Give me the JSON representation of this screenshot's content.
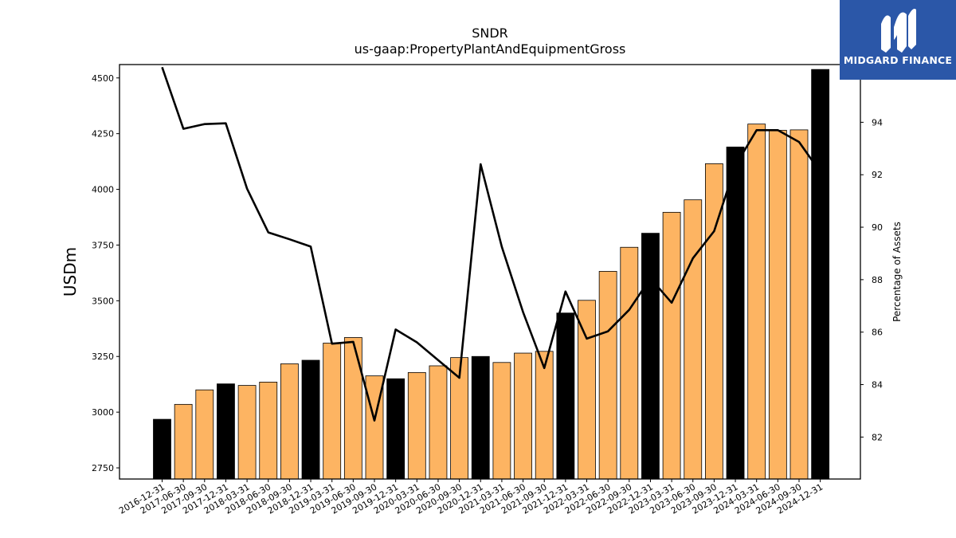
{
  "chart_data": {
    "type": "bar",
    "title": "SNDR",
    "subtitle": "us-gaap:PropertyPlantAndEquipmentGross",
    "ylabel": "USDm",
    "y2label": "Percentage of Assets",
    "categories": [
      "2016-12-31",
      "2017-06-30",
      "2017-09-30",
      "2017-12-31",
      "2018-03-31",
      "2018-06-30",
      "2018-09-30",
      "2018-12-31",
      "2019-03-31",
      "2019-06-30",
      "2019-09-30",
      "2019-12-31",
      "2020-03-31",
      "2020-06-30",
      "2020-09-30",
      "2020-12-31",
      "2021-03-31",
      "2021-06-30",
      "2021-09-30",
      "2021-12-31",
      "2022-03-31",
      "2022-06-30",
      "2022-09-30",
      "2022-12-31",
      "2023-03-31",
      "2023-06-30",
      "2023-09-30",
      "2023-12-31",
      "2024-03-31",
      "2024-06-30",
      "2024-09-30",
      "2024-12-31"
    ],
    "series": [
      {
        "values": [
          2968,
          3035,
          3100,
          3127,
          3120,
          3135,
          3217,
          3233,
          3310,
          3335,
          3163,
          3150,
          3178,
          3208,
          3245,
          3250,
          3223,
          3265,
          3273,
          3445,
          3502,
          3632,
          3740,
          3803,
          3897,
          3953,
          4115,
          4190,
          4293,
          4265,
          4267,
          4538
        ],
        "annual_flags": [
          true,
          false,
          false,
          true,
          false,
          false,
          false,
          true,
          false,
          false,
          false,
          true,
          false,
          false,
          false,
          true,
          false,
          false,
          false,
          true,
          false,
          false,
          false,
          true,
          false,
          false,
          false,
          true,
          false,
          false,
          false,
          true
        ]
      },
      {
        "axis": "right",
        "values": [
          96.1,
          93.75,
          93.93,
          93.96,
          91.47,
          89.8,
          89.54,
          89.26,
          85.56,
          85.63,
          82.63,
          86.1,
          85.61,
          84.93,
          84.26,
          92.4,
          89.25,
          86.77,
          84.63,
          87.55,
          85.75,
          86.03,
          86.85,
          88.05,
          87.12,
          88.82,
          89.85,
          92.34,
          93.7,
          93.7,
          93.25,
          92.1
        ]
      }
    ],
    "ylim": [
      2700,
      4560
    ],
    "y2lim": [
      80.4,
      96.2
    ],
    "yticks": [
      2750,
      3000,
      3250,
      3500,
      3750,
      4000,
      4250,
      4500
    ],
    "y2ticks": [
      82,
      84,
      86,
      88,
      90,
      92,
      94
    ],
    "colors": {
      "quarterly_bar": "#fdb462",
      "annual_bar": "#000000",
      "line": "#000000"
    },
    "grid": false,
    "legend": "none"
  },
  "logo": {
    "text": "MIDGARD FINANCE",
    "background": "#2b57a8"
  }
}
